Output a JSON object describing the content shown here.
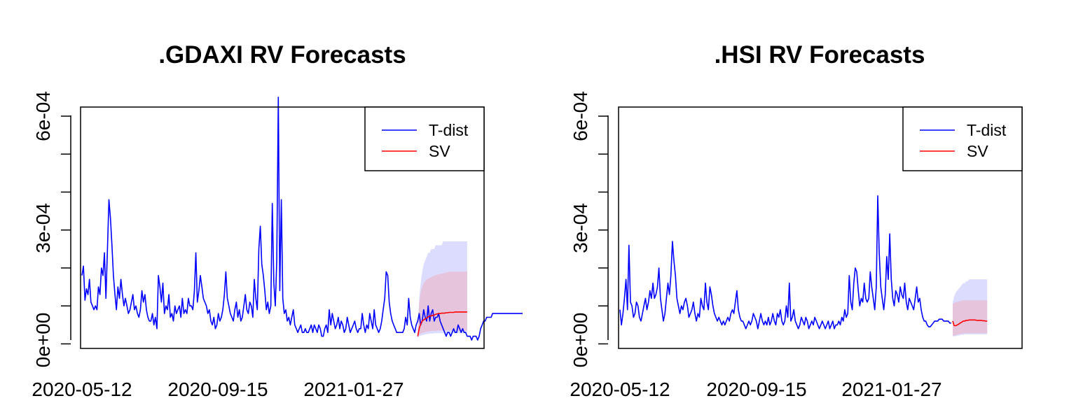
{
  "chart_data": [
    {
      "type": "line",
      "title": ".GDAXI RV Forecasts",
      "xlabel": "",
      "ylabel": "",
      "y_tick_labels": [
        "0e+00",
        "3e-04",
        "6e-04"
      ],
      "y_ticks": [
        0,
        0.0001,
        0.0002,
        0.0003,
        0.0004,
        0.0005,
        0.0006
      ],
      "x_tick_labels": [
        "2020-05-12",
        "2020-09-15",
        "2021-01-27"
      ],
      "x_tick_index": [
        0,
        87,
        174
      ],
      "ylim": [
        -1.2e-05,
        0.000624
      ],
      "xlim": [
        0,
        258
      ],
      "legend_position": "top-right",
      "grid": false,
      "series": [
        {
          "name": "T-dist",
          "color": "#0000ff",
          "start_index": 0,
          "values": [
            0.00018,
            0.000205,
            0.000115,
            0.000145,
            0.00013,
            0.00017,
            0.00011,
            0.0001,
            9e-05,
            0.0001,
            9e-05,
            0.00015,
            0.00013,
            0.0002,
            0.00018,
            0.00024,
            0.00012,
            0.00025,
            0.00038,
            0.00033,
            0.00026,
            0.00018,
            0.00013,
            9e-05,
            0.00015,
            0.00012,
            0.00017,
            0.00013,
            0.0001,
            0.00012,
            0.0001,
            8e-05,
            9e-05,
            0.00011,
            0.00013,
            9e-05,
            0.0001,
            8e-05,
            7e-05,
            9e-05,
            0.00014,
            0.00011,
            0.00013,
            9e-05,
            7e-05,
            6e-05,
            6e-05,
            8e-05,
            5e-05,
            7e-05,
            4e-05,
            0.00018,
            0.00015,
            0.00011,
            0.00016,
            8e-05,
            0.0001,
            9e-05,
            0.00013,
            7e-05,
            8e-05,
            6e-05,
            0.0001,
            8e-05,
            9e-05,
            0.0001,
            7e-05,
            0.00012,
            8e-05,
            9e-05,
            8e-05,
            0.00012,
            0.0001,
            0.0001,
            9e-05,
            0.00014,
            0.00024,
            0.00011,
            0.00014,
            0.00018,
            0.00015,
            0.00012,
            0.00011,
            0.0001,
            8e-05,
            9e-05,
            6e-05,
            5e-05,
            7e-05,
            4e-05,
            5e-05,
            8e-05,
            6e-05,
            7e-05,
            9e-05,
            0.00013,
            0.00019,
            0.00012,
            0.0001,
            8e-05,
            7e-05,
            6e-05,
            9e-05,
            0.00011,
            7e-05,
            9e-05,
            6e-05,
            7e-05,
            0.0001,
            0.00013,
            9e-05,
            8e-05,
            0.00011,
            0.0001,
            7e-05,
            0.00017,
            0.00012,
            9e-05,
            0.00025,
            0.00031,
            0.00021,
            0.00018,
            0.00014,
            9e-05,
            0.00011,
            8e-05,
            0.0001,
            0.00037,
            0.00016,
            0.0001,
            0.00022,
            0.00065,
            0.00014,
            0.00038,
            0.00012,
            8e-05,
            9e-05,
            6e-05,
            7e-05,
            5e-05,
            7e-05,
            9e-05,
            5e-05,
            4e-05,
            3e-05,
            4e-05,
            5e-05,
            3e-05,
            3e-05,
            4e-05,
            3e-05,
            3e-05,
            4e-05,
            5e-05,
            3e-05,
            5e-05,
            4e-05,
            3e-05,
            5e-05,
            4e-05,
            2e-05,
            2e-05,
            4e-05,
            5e-05,
            3e-05,
            9e-05,
            5e-05,
            8e-05,
            6e-05,
            4e-05,
            5e-05,
            7e-05,
            4e-05,
            6e-05,
            5e-05,
            3e-05,
            4e-05,
            7e-05,
            5e-05,
            3e-05,
            4e-05,
            5e-05,
            6e-05,
            4e-05,
            3e-05,
            4e-05,
            4e-05,
            8e-05,
            5e-05,
            3e-05,
            5e-05,
            4e-05,
            8e-05,
            6e-05,
            4e-05,
            9e-05,
            5e-05,
            4e-05,
            3e-05,
            4e-05,
            6e-05,
            9e-05,
            0.00012,
            0.00019,
            0.00018,
            0.00011,
            8e-05,
            6e-05,
            5e-05,
            4e-05,
            3e-05,
            3e-05,
            3e-05,
            3e-05,
            3e-05,
            4e-05,
            7e-05,
            5e-05,
            0.00012,
            7e-05,
            5e-05,
            4e-05,
            3e-05,
            5e-05,
            6e-05,
            8e-05,
            5e-05,
            6e-05,
            9e-05,
            7e-05,
            6e-05,
            0.0001,
            6e-05,
            8e-05,
            9e-05,
            6e-05,
            7e-05,
            7e-05,
            8e-05,
            6e-05,
            5e-05,
            4e-05,
            3e-05,
            2e-05,
            3e-05,
            3e-05,
            2e-05,
            3e-05,
            4e-05,
            3e-05,
            3e-05,
            5e-05,
            4e-05,
            3e-05,
            4e-05,
            3e-05,
            3e-05,
            2e-05,
            2e-05,
            2e-05,
            1e-05,
            2e-05,
            2e-05,
            2e-05,
            1e-05,
            2e-05,
            4e-05,
            5e-05,
            6e-05,
            6e-05,
            7e-05,
            7e-05,
            7e-05,
            7e-05,
            8e-05,
            8e-05,
            8e-05,
            8e-05,
            8e-05,
            8e-05,
            8e-05,
            8e-05,
            8e-05,
            8e-05,
            8e-05,
            8e-05,
            8e-05,
            8e-05,
            8e-05,
            8e-05,
            8e-05,
            8e-05,
            8e-05,
            8e-05,
            8e-05
          ]
        },
        {
          "name": "SV",
          "color": "#ff0000",
          "start_index": 224,
          "values": [
            2e-05,
            4e-05,
            5.2e-05,
            6e-05,
            6.3e-05,
            6.6e-05,
            6.8e-05,
            7.1e-05,
            7.3e-05,
            7.4e-05,
            7.5e-05,
            7.6e-05,
            7.8e-05,
            7.9e-05,
            8e-05,
            8e-05,
            8.1e-05,
            8.1e-05,
            8.1e-05,
            8.2e-05,
            8.2e-05,
            8.3e-05,
            8.3e-05,
            8.3e-05,
            8.3e-05,
            8.4e-05,
            8.4e-05,
            8.4e-05,
            8.4e-05,
            8.4e-05,
            8.4e-05,
            8.4e-05,
            8.4e-05,
            8.4e-05
          ]
        }
      ],
      "bands": [
        {
          "color": "#dcdcff",
          "start_index": 224,
          "lower": [
            1.5e-05,
            2e-05,
            2.2e-05,
            2.3e-05,
            2.4e-05,
            2.5e-05,
            2.6e-05,
            2.6e-05,
            2.7e-05,
            2.7e-05,
            2.7e-05,
            2.8e-05,
            2.8e-05,
            2.8e-05,
            2.8e-05,
            2.8e-05,
            2.8e-05,
            2.8e-05,
            2.8e-05,
            2.8e-05,
            2.8e-05,
            2.8e-05,
            2.8e-05,
            2.8e-05,
            2.8e-05,
            2.8e-05,
            2.8e-05,
            2.8e-05,
            2.8e-05,
            2.8e-05,
            2.8e-05,
            2.8e-05,
            2.8e-05,
            2.8e-05
          ],
          "upper": [
            4e-05,
            0.00012,
            0.00016,
            0.00019,
            0.00021,
            0.00022,
            0.00023,
            0.00024,
            0.00024,
            0.00025,
            0.00025,
            0.00025,
            0.00026,
            0.00026,
            0.00026,
            0.00026,
            0.00026,
            0.00027,
            0.00027,
            0.00027,
            0.00027,
            0.00027,
            0.00027,
            0.00027,
            0.00027,
            0.00027,
            0.00027,
            0.00027,
            0.00027,
            0.00027,
            0.00027,
            0.00027,
            0.00027,
            0.00027
          ]
        },
        {
          "color": "#e5c4dc",
          "start_index": 224,
          "lower": [
            1.8e-05,
            2.4e-05,
            2.7e-05,
            2.9e-05,
            3e-05,
            3.1e-05,
            3.2e-05,
            3.3e-05,
            3.3e-05,
            3.4e-05,
            3.4e-05,
            3.4e-05,
            3.5e-05,
            3.5e-05,
            3.5e-05,
            3.5e-05,
            3.5e-05,
            3.5e-05,
            3.5e-05,
            3.5e-05,
            3.5e-05,
            3.5e-05,
            3.5e-05,
            3.5e-05,
            3.5e-05,
            3.5e-05,
            3.5e-05,
            3.5e-05,
            3.5e-05,
            3.5e-05,
            3.5e-05,
            3.5e-05,
            3.5e-05,
            3.5e-05
          ],
          "upper": [
            3e-05,
            0.000105,
            0.000135,
            0.00015,
            0.00016,
            0.000165,
            0.00017,
            0.000172,
            0.000174,
            0.000176,
            0.000178,
            0.00018,
            0.000181,
            0.000182,
            0.000183,
            0.000184,
            0.000185,
            0.000186,
            0.000187,
            0.000188,
            0.000189,
            0.00019,
            0.00019,
            0.00019,
            0.00019,
            0.00019,
            0.00019,
            0.00019,
            0.00019,
            0.00019,
            0.00019,
            0.00019,
            0.00019,
            0.00019
          ]
        }
      ]
    },
    {
      "type": "line",
      "title": ".HSI RV Forecasts",
      "xlabel": "",
      "ylabel": "",
      "y_tick_labels": [
        "0e+00",
        "3e-04",
        "6e-04"
      ],
      "y_ticks": [
        0,
        0.0001,
        0.0002,
        0.0003,
        0.0004,
        0.0005,
        0.0006
      ],
      "x_tick_labels": [
        "2020-05-12",
        "2020-09-15",
        "2021-01-27"
      ],
      "x_tick_index": [
        0,
        87,
        174
      ],
      "ylim": [
        -1.2e-05,
        0.000624
      ],
      "xlim": [
        0,
        258
      ],
      "legend_position": "top-right",
      "grid": false,
      "series": [
        {
          "name": "T-dist",
          "color": "#0000ff",
          "start_index": 0,
          "values": [
            9e-05,
            5e-05,
            8e-05,
            0.00012,
            0.00017,
            9e-05,
            0.00026,
            0.00011,
            0.0001,
            7e-05,
            8e-05,
            0.00011,
            0.0001,
            7e-05,
            6e-05,
            8e-05,
            0.0001,
            0.00012,
            9e-05,
            0.00011,
            0.00014,
            0.00012,
            0.00016,
            0.00012,
            0.00013,
            0.00015,
            0.0002,
            0.00012,
            9e-05,
            6e-05,
            8e-05,
            0.00012,
            0.00016,
            0.00013,
            0.00018,
            0.00027,
            0.00022,
            0.00018,
            0.00012,
            0.0001,
            8e-05,
            0.0001,
            9e-05,
            0.00011,
            0.00012,
            0.0001,
            7e-05,
            8e-05,
            9e-05,
            0.00011,
            8e-05,
            6e-05,
            8e-05,
            7e-05,
            0.00012,
            0.0001,
            9e-05,
            0.00016,
            0.00011,
            9e-05,
            0.00015,
            0.00013,
            0.0001,
            8e-05,
            7e-05,
            6e-05,
            7e-05,
            6e-05,
            5e-05,
            6e-05,
            5e-05,
            6e-05,
            7e-05,
            6e-05,
            8e-05,
            9e-05,
            8e-05,
            0.00011,
            0.00014,
            9e-05,
            7e-05,
            6e-05,
            6e-05,
            5e-05,
            4e-05,
            5e-05,
            6e-05,
            5e-05,
            6e-05,
            8e-05,
            7e-05,
            6e-05,
            4e-05,
            6e-05,
            8e-05,
            6e-05,
            5e-05,
            6e-05,
            5e-05,
            7e-05,
            5e-05,
            6e-05,
            8e-05,
            6e-05,
            5e-05,
            8e-05,
            7e-05,
            9e-05,
            6e-05,
            5e-05,
            6e-05,
            0.0001,
            7e-05,
            0.00016,
            6e-05,
            7e-05,
            9e-05,
            6e-05,
            5e-05,
            4e-05,
            5e-05,
            7e-05,
            6e-05,
            5e-05,
            7e-05,
            6e-05,
            4e-05,
            5e-05,
            6e-05,
            5e-05,
            7e-05,
            6e-05,
            5e-05,
            4e-05,
            5e-05,
            6e-05,
            5e-05,
            4e-05,
            5e-05,
            6e-05,
            4e-05,
            5e-05,
            6e-05,
            4e-05,
            5e-05,
            5e-05,
            6e-05,
            5e-05,
            7e-05,
            6e-05,
            9e-05,
            7e-05,
            8e-05,
            0.00018,
            0.00011,
            9e-05,
            0.00016,
            0.0002,
            0.00019,
            0.00014,
            0.0001,
            0.00012,
            0.00011,
            0.00016,
            0.00012,
            0.00011,
            0.00012,
            0.00019,
            0.00015,
            0.00012,
            9e-05,
            0.00015,
            0.00039,
            0.00024,
            0.00015,
            0.00012,
            9e-05,
            0.00013,
            0.00023,
            0.00017,
            0.00029,
            0.00017,
            0.00012,
            0.0001,
            0.00014,
            0.00013,
            0.00011,
            0.00015,
            0.00013,
            0.00012,
            0.00016,
            0.00011,
            9e-05,
            0.00012,
            0.00011,
            0.0001,
            9e-05,
            0.00012,
            0.00015,
            0.00011,
            0.00012,
            9e-05,
            7e-05,
            6e-05,
            6e-05,
            5e-05,
            4.5e-05,
            4.5e-05,
            5e-05,
            5.5e-05,
            6e-05,
            6e-05,
            6e-05,
            6.5e-05,
            6.5e-05,
            6.5e-05,
            6e-05,
            6e-05,
            6e-05,
            6e-05,
            5.5e-05,
            5.5e-05
          ]
        },
        {
          "name": "SV",
          "color": "#ff0000",
          "start_index": 222,
          "values": [
            6e-05,
            4.8e-05,
            4.8e-05,
            5e-05,
            5.2e-05,
            5.5e-05,
            5.7e-05,
            6e-05,
            6e-05,
            6.2e-05,
            6.2e-05,
            6.3e-05,
            6.3e-05,
            6.3e-05,
            6.3e-05,
            6.3e-05,
            6.2e-05,
            6.2e-05,
            6.2e-05,
            6.2e-05,
            6.1e-05,
            6.1e-05,
            6e-05,
            6e-05
          ]
        }
      ],
      "bands": [
        {
          "color": "#dcdcff",
          "start_index": 222,
          "lower": [
            2e-05,
            2e-05,
            2e-05,
            2.2e-05,
            2.2e-05,
            2.3e-05,
            2.4e-05,
            2.4e-05,
            2.5e-05,
            2.5e-05,
            2.5e-05,
            2.5e-05,
            2.5e-05,
            2.5e-05,
            2.5e-05,
            2.5e-05,
            2.5e-05,
            2.5e-05,
            2.5e-05,
            2.5e-05,
            2.5e-05,
            2.5e-05,
            2.5e-05,
            2.5e-05
          ],
          "upper": [
            0.00011,
            0.000125,
            0.000135,
            0.00014,
            0.000145,
            0.00015,
            0.000155,
            0.00016,
            0.00016,
            0.000165,
            0.000165,
            0.00017,
            0.00017,
            0.00017,
            0.00017,
            0.00017,
            0.00017,
            0.00017,
            0.00017,
            0.00017,
            0.00017,
            0.00017,
            0.00017,
            0.00017
          ]
        },
        {
          "color": "#e5c4dc",
          "start_index": 222,
          "lower": [
            2.2e-05,
            2.2e-05,
            2.3e-05,
            2.4e-05,
            2.5e-05,
            2.6e-05,
            2.7e-05,
            2.7e-05,
            2.8e-05,
            2.8e-05,
            2.8e-05,
            2.8e-05,
            2.8e-05,
            2.8e-05,
            2.8e-05,
            2.8e-05,
            2.8e-05,
            2.8e-05,
            2.8e-05,
            2.8e-05,
            2.8e-05,
            2.8e-05,
            2.8e-05,
            2.8e-05
          ],
          "upper": [
            0.000105,
            0.000108,
            0.00011,
            0.00011,
            0.000112,
            0.000113,
            0.000114,
            0.000115,
            0.000115,
            0.000115,
            0.000115,
            0.000115,
            0.000115,
            0.000115,
            0.000115,
            0.000115,
            0.000115,
            0.000115,
            0.000115,
            0.000115,
            0.000115,
            0.000115,
            0.000115,
            0.000115
          ]
        }
      ]
    }
  ]
}
